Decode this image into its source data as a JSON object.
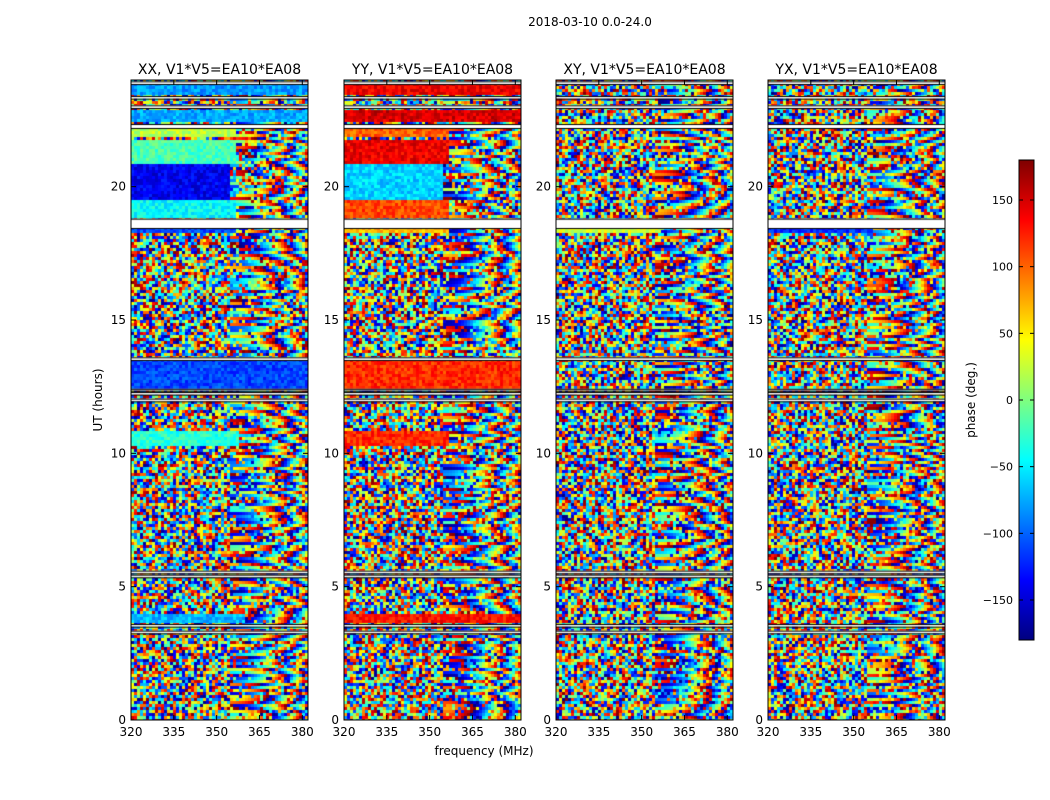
{
  "figure": {
    "suptitle": "2018-03-10 0.0-24.0",
    "xlabel": "frequency (MHz)",
    "ylabel": "UT (hours)"
  },
  "colorbar": {
    "label": "phase (deg.)",
    "range": [
      -180,
      180
    ],
    "ticks": [
      150,
      100,
      50,
      0,
      -50,
      -100,
      -150
    ],
    "tick_labels": [
      "150",
      "100",
      "50",
      "0",
      "−50",
      "−100",
      "−150"
    ],
    "colormap": [
      "#00007f",
      "#0000ff",
      "#007fff",
      "#00ffff",
      "#7fff7f",
      "#ffff00",
      "#ff7f00",
      "#ff0000",
      "#7f0000"
    ]
  },
  "chart_data": [
    {
      "type": "heatmap",
      "title": "XX, V1*V5=EA10*EA08",
      "xlabel": "frequency (MHz)",
      "ylabel": "UT (hours)",
      "xlim": [
        320,
        382
      ],
      "ylim": [
        0,
        24
      ],
      "xticks": [
        320,
        335,
        350,
        365,
        380
      ],
      "yticks": [
        0,
        5,
        10,
        15,
        20
      ],
      "value": "phase (deg.)",
      "coherent_bands": [
        {
          "t0": 3.6,
          "t1": 4.0,
          "f_end": 360,
          "phase": -70
        },
        {
          "t0": 10.3,
          "t1": 10.8,
          "f_end": 358,
          "phase": -30
        },
        {
          "t0": 12.4,
          "t1": 13.5,
          "f_end": 382,
          "phase": -110
        },
        {
          "t0": 18.3,
          "t1": 18.5,
          "f_end": 357,
          "phase": -110
        },
        {
          "t0": 18.8,
          "t1": 19.5,
          "f_end": 357,
          "phase": -45
        },
        {
          "t0": 19.5,
          "t1": 20.8,
          "f_end": 355,
          "phase": -140
        },
        {
          "t0": 20.8,
          "t1": 21.7,
          "f_end": 357,
          "phase": -20
        },
        {
          "t0": 21.9,
          "t1": 22.2,
          "f_end": 357,
          "phase": 20
        },
        {
          "t0": 22.4,
          "t1": 22.9,
          "f_end": 382,
          "phase": -75
        },
        {
          "t0": 23.4,
          "t1": 23.9,
          "f_end": 382,
          "phase": -80
        }
      ]
    },
    {
      "type": "heatmap",
      "title": "YY, V1*V5=EA10*EA08",
      "xlabel": "frequency (MHz)",
      "ylabel": "UT (hours)",
      "xlim": [
        320,
        382
      ],
      "ylim": [
        0,
        24
      ],
      "xticks": [
        320,
        335,
        350,
        365,
        380
      ],
      "yticks": [
        0,
        5,
        10,
        15,
        20
      ],
      "value": "phase (deg.)",
      "coherent_bands": [
        {
          "t0": 3.6,
          "t1": 4.0,
          "f_end": 382,
          "phase": 130
        },
        {
          "t0": 10.3,
          "t1": 10.8,
          "f_end": 357,
          "phase": 120
        },
        {
          "t0": 12.4,
          "t1": 13.5,
          "f_end": 382,
          "phase": 120
        },
        {
          "t0": 18.3,
          "t1": 18.5,
          "f_end": 357,
          "phase": 70
        },
        {
          "t0": 18.8,
          "t1": 19.5,
          "f_end": 357,
          "phase": 110
        },
        {
          "t0": 19.5,
          "t1": 20.8,
          "f_end": 355,
          "phase": -60
        },
        {
          "t0": 20.8,
          "t1": 21.7,
          "f_end": 357,
          "phase": 140
        },
        {
          "t0": 21.9,
          "t1": 22.2,
          "f_end": 357,
          "phase": 100
        },
        {
          "t0": 22.4,
          "t1": 22.9,
          "f_end": 382,
          "phase": 150
        },
        {
          "t0": 23.4,
          "t1": 23.9,
          "f_end": 382,
          "phase": 140
        }
      ]
    },
    {
      "type": "heatmap",
      "title": "XY, V1*V5=EA10*EA08",
      "xlabel": "frequency (MHz)",
      "ylabel": "UT (hours)",
      "xlim": [
        320,
        382
      ],
      "ylim": [
        0,
        24
      ],
      "xticks": [
        320,
        335,
        350,
        365,
        380
      ],
      "yticks": [
        0,
        5,
        10,
        15,
        20
      ],
      "value": "phase (deg.)",
      "coherent_bands": [
        {
          "t0": 18.3,
          "t1": 18.5,
          "f_end": 357,
          "phase": 30
        }
      ]
    },
    {
      "type": "heatmap",
      "title": "YX, V1*V5=EA10*EA08",
      "xlabel": "frequency (MHz)",
      "ylabel": "UT (hours)",
      "xlim": [
        320,
        382
      ],
      "ylim": [
        0,
        24
      ],
      "xticks": [
        320,
        335,
        350,
        365,
        380
      ],
      "yticks": [
        0,
        5,
        10,
        15,
        20
      ],
      "value": "phase (deg.)",
      "coherent_bands": [
        {
          "t0": 18.3,
          "t1": 18.5,
          "f_end": 357,
          "phase": -120
        }
      ]
    }
  ],
  "flagged_intervals_hours": [
    [
      3.25,
      3.35
    ],
    [
      3.5,
      3.6
    ],
    [
      5.35,
      5.45
    ],
    [
      5.5,
      5.6
    ],
    [
      11.95,
      12.05
    ],
    [
      12.2,
      12.3
    ],
    [
      12.35,
      12.42
    ],
    [
      13.5,
      13.6
    ],
    [
      18.45,
      18.8
    ],
    [
      22.2,
      22.35
    ],
    [
      22.95,
      23.05
    ],
    [
      23.3,
      23.4
    ],
    [
      23.85,
      23.95
    ]
  ]
}
